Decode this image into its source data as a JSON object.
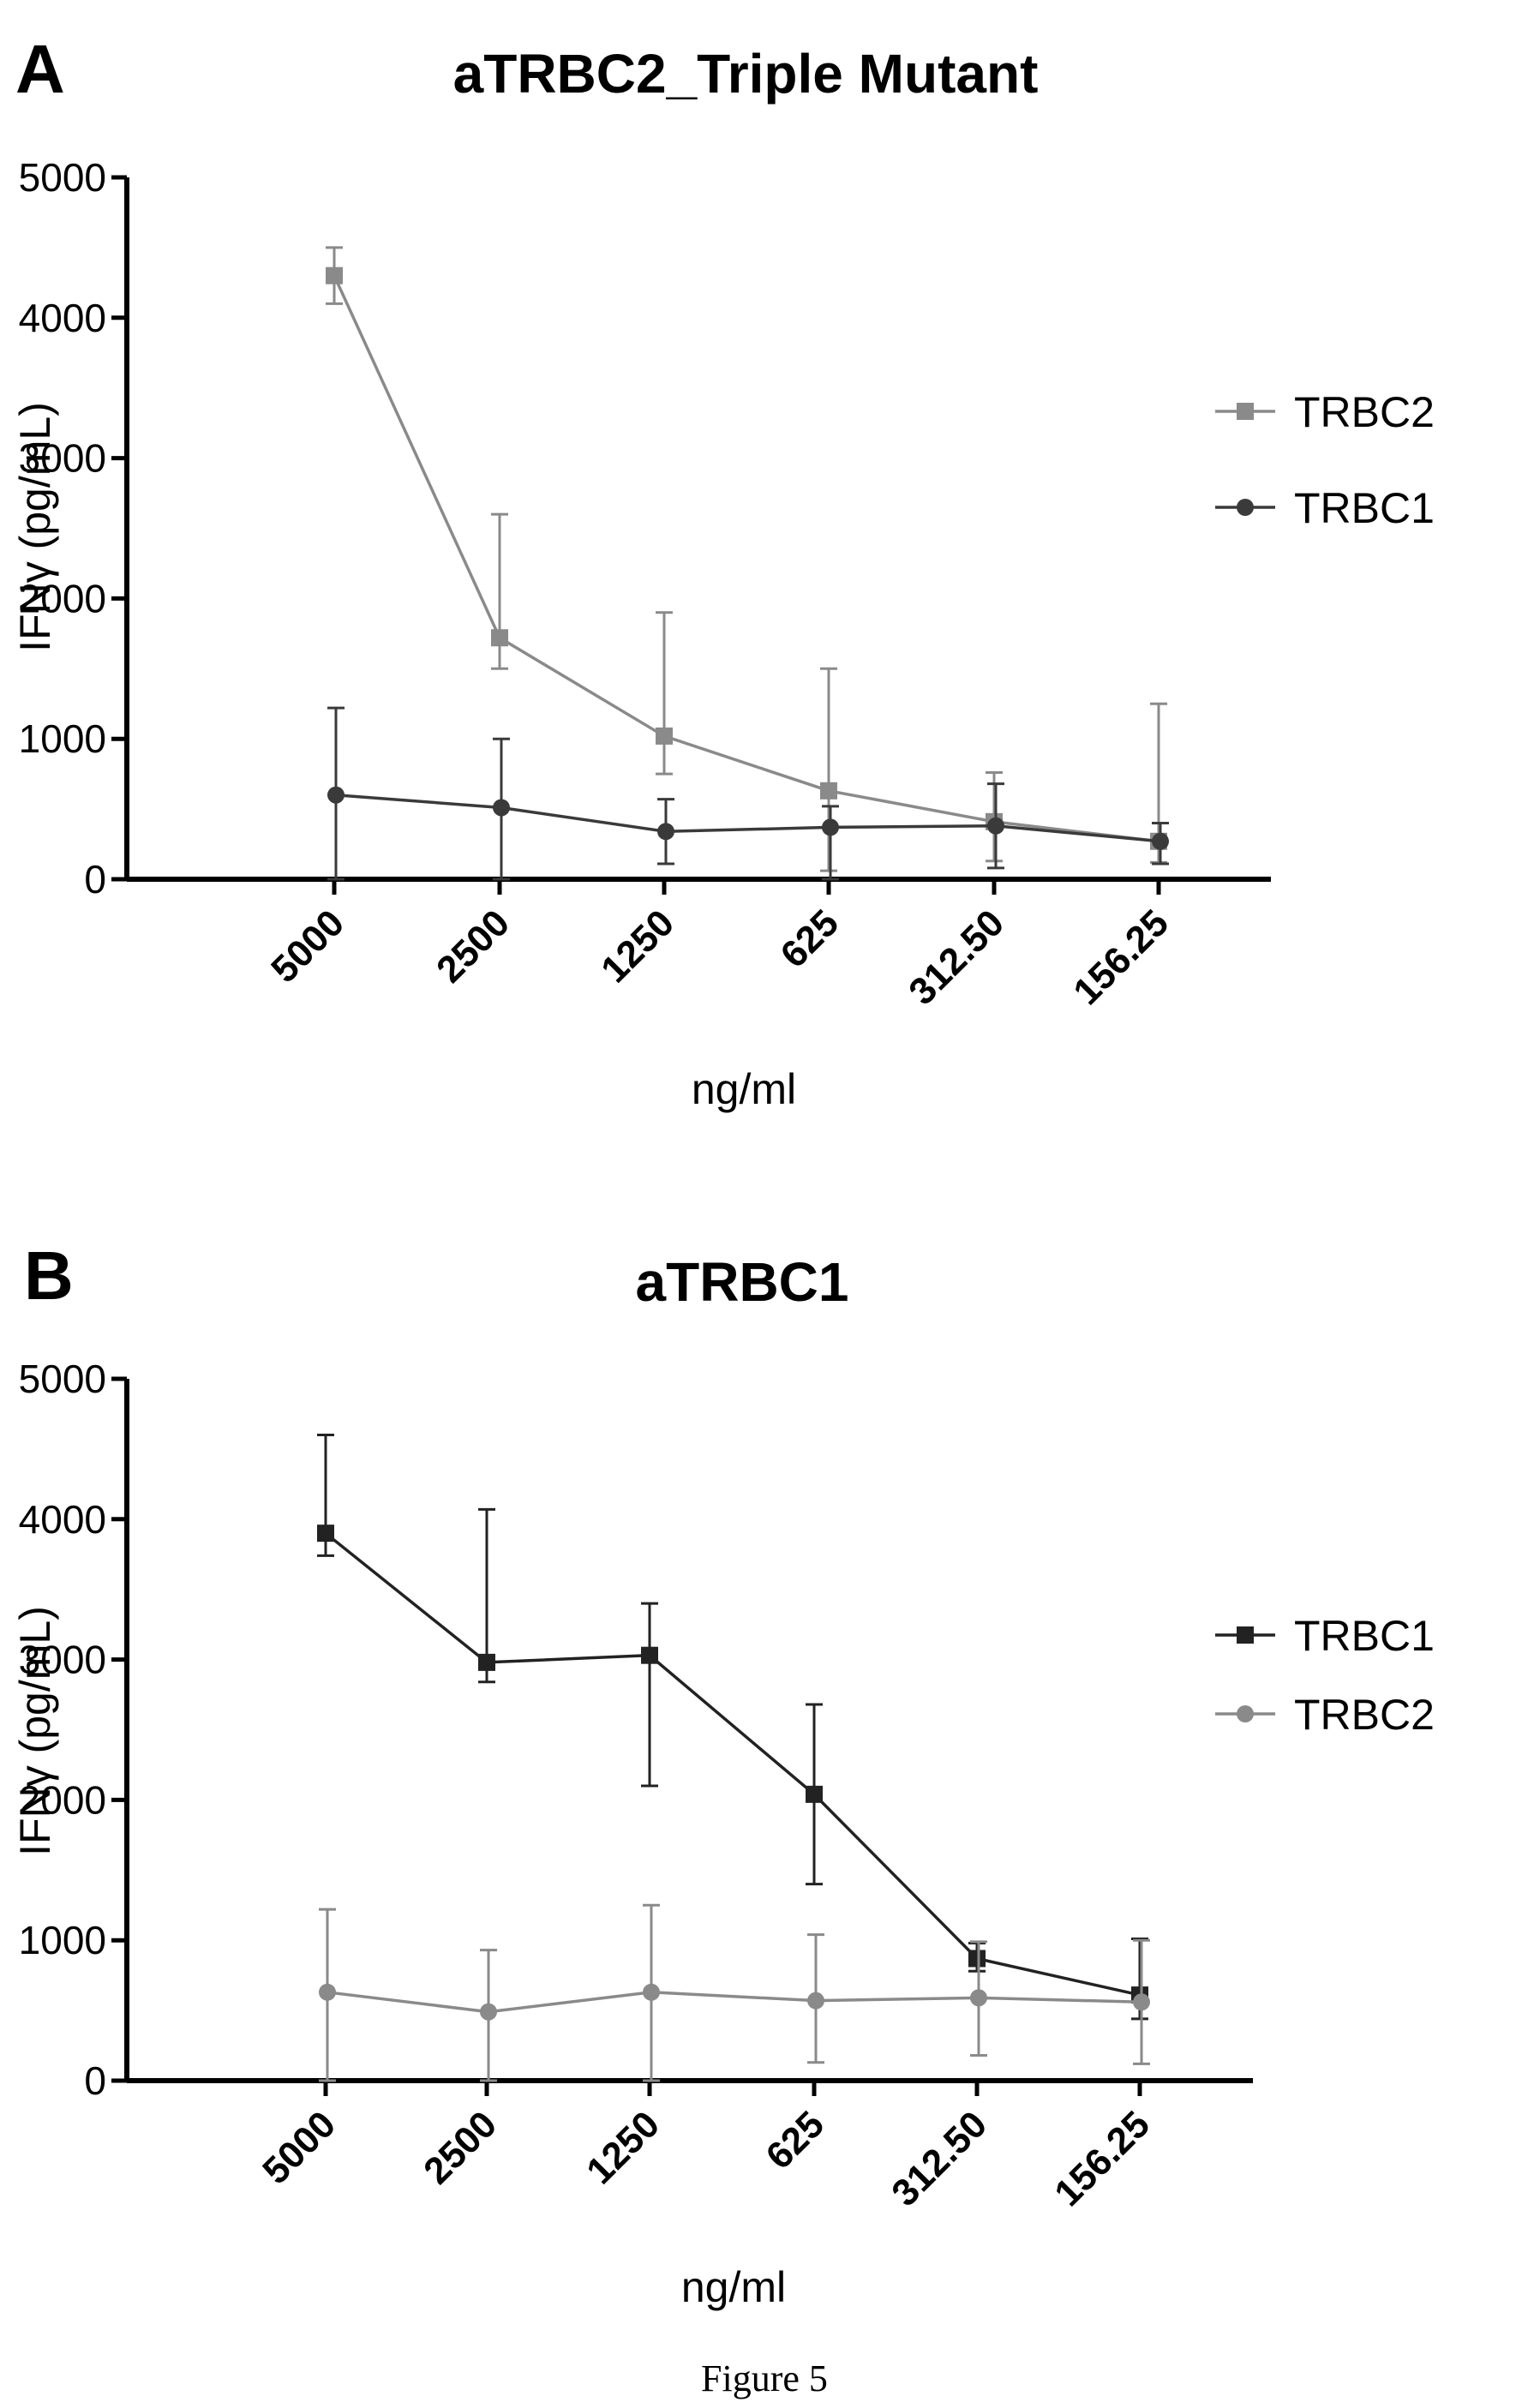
{
  "caption": "Figure 5",
  "chart_data": [
    {
      "type": "line",
      "panel": "A",
      "title": "aTRBC2_Triple Mutant",
      "xlabel": "ng/ml",
      "ylabel": "IFNγ (pg/mL)",
      "categories": [
        "5000",
        "2500",
        "1250",
        "625",
        "312.50",
        "156.25"
      ],
      "ylim": [
        0,
        5000
      ],
      "yticks": [
        "0",
        "1000",
        "2000",
        "3000",
        "4000",
        "5000"
      ],
      "legend_position": "right",
      "series": [
        {
          "name": "TRBC2",
          "color": "#8a8a8a",
          "marker": "square",
          "values": [
            4300,
            1720,
            1020,
            630,
            410,
            270
          ],
          "err_upper": [
            4500,
            2600,
            1900,
            1500,
            760,
            1250
          ],
          "err_lower": [
            4100,
            1500,
            750,
            60,
            130,
            120
          ]
        },
        {
          "name": "TRBC1",
          "color": "#3a3a3a",
          "marker": "circle",
          "values": [
            600,
            510,
            340,
            370,
            380,
            270
          ],
          "err_upper": [
            1220,
            1000,
            570,
            520,
            680,
            400
          ],
          "err_lower": [
            0,
            0,
            110,
            0,
            80,
            110
          ]
        }
      ]
    },
    {
      "type": "line",
      "panel": "B",
      "title": "aTRBC1",
      "xlabel": "ng/ml",
      "ylabel": "IFNγ (pg/mL)",
      "categories": [
        "5000",
        "2500",
        "1250",
        "625",
        "312.50",
        "156.25"
      ],
      "ylim": [
        0,
        5000
      ],
      "yticks": [
        "0",
        "1000",
        "2000",
        "3000",
        "4000",
        "5000"
      ],
      "legend_position": "right",
      "series": [
        {
          "name": "TRBC1",
          "color": "#222222",
          "marker": "square",
          "values": [
            3900,
            2980,
            3030,
            2040,
            870,
            610
          ],
          "err_upper": [
            4600,
            4070,
            3400,
            2680,
            980,
            1010
          ],
          "err_lower": [
            3740,
            2840,
            2100,
            1400,
            780,
            440
          ]
        },
        {
          "name": "TRBC2",
          "color": "#8a8a8a",
          "marker": "circle",
          "values": [
            630,
            490,
            630,
            570,
            590,
            560
          ],
          "err_upper": [
            1220,
            930,
            1250,
            1040,
            990,
            1000
          ],
          "err_lower": [
            0,
            0,
            0,
            130,
            180,
            120
          ]
        }
      ]
    }
  ]
}
